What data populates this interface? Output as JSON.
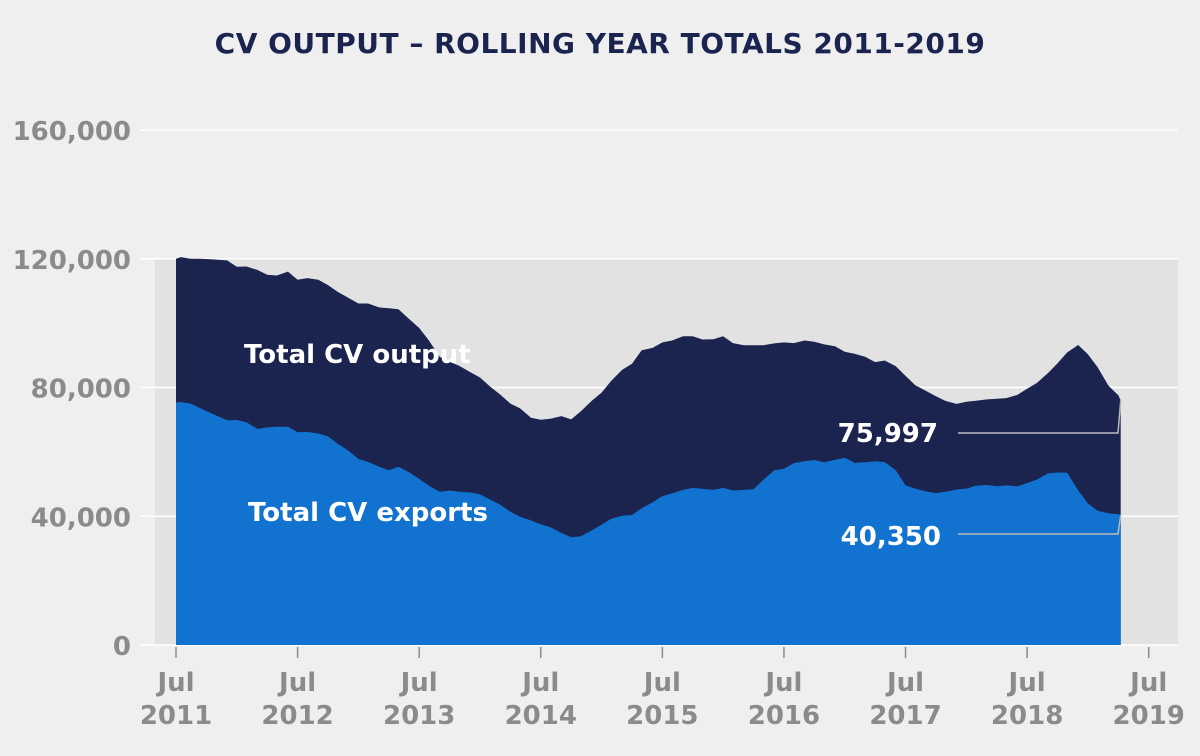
{
  "chart_data": {
    "type": "area",
    "title": "CV OUTPUT – ROLLING YEAR TOTALS 2011-2019",
    "xlabel": "",
    "ylabel": "",
    "ylim": [
      0,
      160000
    ],
    "yticks": [
      {
        "value": 0,
        "label": "0"
      },
      {
        "value": 40000,
        "label": "40,000"
      },
      {
        "value": 80000,
        "label": "80,000"
      },
      {
        "value": 120000,
        "label": "120,000"
      },
      {
        "value": 160000,
        "label": "160,000"
      }
    ],
    "xlim": [
      2011.5,
      2019.56
    ],
    "xticks": [
      {
        "value": 2011.5,
        "line1": "Jul",
        "line2": "2011"
      },
      {
        "value": 2012.5,
        "line1": "Jul",
        "line2": "2012"
      },
      {
        "value": 2013.5,
        "line1": "Jul",
        "line2": "2013"
      },
      {
        "value": 2014.5,
        "line1": "Jul",
        "line2": "2014"
      },
      {
        "value": 2015.5,
        "line1": "Jul",
        "line2": "2015"
      },
      {
        "value": 2016.5,
        "line1": "Jul",
        "line2": "2016"
      },
      {
        "value": 2017.5,
        "line1": "Jul",
        "line2": "2017"
      },
      {
        "value": 2018.5,
        "line1": "Jul",
        "line2": "2018"
      },
      {
        "value": 2019.5,
        "line1": "Jul",
        "line2": "2019"
      }
    ],
    "band_range": [
      0,
      120000
    ],
    "grid": true,
    "series": [
      {
        "name": "Total CV output",
        "color": "#1b234f",
        "label_color": "#ffffff",
        "end_value_label": "75,997",
        "points": [
          [
            2011.5,
            120000
          ],
          [
            2011.54,
            120500
          ],
          [
            2011.62,
            120000
          ],
          [
            2011.7,
            120000
          ],
          [
            2011.8,
            119800
          ],
          [
            2011.92,
            119500
          ],
          [
            2012.0,
            117500
          ],
          [
            2012.08,
            117600
          ],
          [
            2012.17,
            116500
          ],
          [
            2012.25,
            115000
          ],
          [
            2012.33,
            114800
          ],
          [
            2012.42,
            116000
          ],
          [
            2012.5,
            113500
          ],
          [
            2012.58,
            114000
          ],
          [
            2012.67,
            113500
          ],
          [
            2012.75,
            111800
          ],
          [
            2012.83,
            109700
          ],
          [
            2012.92,
            107800
          ],
          [
            2013.0,
            106100
          ],
          [
            2013.08,
            106100
          ],
          [
            2013.17,
            104900
          ],
          [
            2013.25,
            104600
          ],
          [
            2013.33,
            104300
          ],
          [
            2013.42,
            101200
          ],
          [
            2013.5,
            98500
          ],
          [
            2013.58,
            94600
          ],
          [
            2013.67,
            89500
          ],
          [
            2013.75,
            88000
          ],
          [
            2013.83,
            86700
          ],
          [
            2013.92,
            84800
          ],
          [
            2014.0,
            83100
          ],
          [
            2014.08,
            80400
          ],
          [
            2014.17,
            77700
          ],
          [
            2014.25,
            75000
          ],
          [
            2014.33,
            73500
          ],
          [
            2014.42,
            70600
          ],
          [
            2014.5,
            70000
          ],
          [
            2014.58,
            70300
          ],
          [
            2014.67,
            71100
          ],
          [
            2014.75,
            70100
          ],
          [
            2014.83,
            72600
          ],
          [
            2014.92,
            75900
          ],
          [
            2015.0,
            78400
          ],
          [
            2015.08,
            82100
          ],
          [
            2015.17,
            85500
          ],
          [
            2015.25,
            87400
          ],
          [
            2015.33,
            91600
          ],
          [
            2015.42,
            92300
          ],
          [
            2015.5,
            94000
          ],
          [
            2015.58,
            94600
          ],
          [
            2015.67,
            95900
          ],
          [
            2015.75,
            95900
          ],
          [
            2015.83,
            94900
          ],
          [
            2015.92,
            95000
          ],
          [
            2016.0,
            95900
          ],
          [
            2016.08,
            93800
          ],
          [
            2016.17,
            93100
          ],
          [
            2016.25,
            93100
          ],
          [
            2016.33,
            93100
          ],
          [
            2016.42,
            93700
          ],
          [
            2016.5,
            94000
          ],
          [
            2016.58,
            93800
          ],
          [
            2016.67,
            94600
          ],
          [
            2016.75,
            94200
          ],
          [
            2016.83,
            93400
          ],
          [
            2016.92,
            92800
          ],
          [
            2017.0,
            91100
          ],
          [
            2017.08,
            90500
          ],
          [
            2017.17,
            89500
          ],
          [
            2017.25,
            87900
          ],
          [
            2017.33,
            88400
          ],
          [
            2017.42,
            86600
          ],
          [
            2017.5,
            83600
          ],
          [
            2017.58,
            80700
          ],
          [
            2017.67,
            78900
          ],
          [
            2017.75,
            77300
          ],
          [
            2017.83,
            75800
          ],
          [
            2017.92,
            74900
          ],
          [
            2018.0,
            75600
          ],
          [
            2018.08,
            75900
          ],
          [
            2018.17,
            76300
          ],
          [
            2018.25,
            76500
          ],
          [
            2018.33,
            76700
          ],
          [
            2018.42,
            77700
          ],
          [
            2018.5,
            79600
          ],
          [
            2018.58,
            81400
          ],
          [
            2018.67,
            84400
          ],
          [
            2018.75,
            87500
          ],
          [
            2018.83,
            90900
          ],
          [
            2018.92,
            93200
          ],
          [
            2019.0,
            90300
          ],
          [
            2019.08,
            86300
          ],
          [
            2019.17,
            80500
          ],
          [
            2019.25,
            77600
          ],
          [
            2019.27,
            75997
          ]
        ]
      },
      {
        "name": "Total CV exports",
        "color": "#1173cf",
        "label_color": "#ffffff",
        "end_value_label": "40,350",
        "points": [
          [
            2011.5,
            75300
          ],
          [
            2011.54,
            75500
          ],
          [
            2011.62,
            75000
          ],
          [
            2011.7,
            73600
          ],
          [
            2011.8,
            71800
          ],
          [
            2011.92,
            69800
          ],
          [
            2012.0,
            69900
          ],
          [
            2012.08,
            69200
          ],
          [
            2012.17,
            67100
          ],
          [
            2012.25,
            67600
          ],
          [
            2012.33,
            67800
          ],
          [
            2012.42,
            67800
          ],
          [
            2012.5,
            66100
          ],
          [
            2012.58,
            66200
          ],
          [
            2012.67,
            65700
          ],
          [
            2012.75,
            64800
          ],
          [
            2012.83,
            62500
          ],
          [
            2012.92,
            60300
          ],
          [
            2013.0,
            57800
          ],
          [
            2013.08,
            56900
          ],
          [
            2013.17,
            55400
          ],
          [
            2013.25,
            54300
          ],
          [
            2013.33,
            55400
          ],
          [
            2013.42,
            53600
          ],
          [
            2013.5,
            51600
          ],
          [
            2013.58,
            49500
          ],
          [
            2013.67,
            47600
          ],
          [
            2013.75,
            48000
          ],
          [
            2013.83,
            47600
          ],
          [
            2013.92,
            47400
          ],
          [
            2014.0,
            46800
          ],
          [
            2014.08,
            45300
          ],
          [
            2014.17,
            43500
          ],
          [
            2014.25,
            41400
          ],
          [
            2014.33,
            39800
          ],
          [
            2014.42,
            38700
          ],
          [
            2014.5,
            37500
          ],
          [
            2014.58,
            36600
          ],
          [
            2014.67,
            34800
          ],
          [
            2014.75,
            33500
          ],
          [
            2014.83,
            33800
          ],
          [
            2014.92,
            35600
          ],
          [
            2015.0,
            37400
          ],
          [
            2015.08,
            39200
          ],
          [
            2015.17,
            40200
          ],
          [
            2015.25,
            40400
          ],
          [
            2015.33,
            42500
          ],
          [
            2015.42,
            44300
          ],
          [
            2015.5,
            46300
          ],
          [
            2015.58,
            47100
          ],
          [
            2015.67,
            48200
          ],
          [
            2015.75,
            48800
          ],
          [
            2015.83,
            48500
          ],
          [
            2015.92,
            48200
          ],
          [
            2016.0,
            48800
          ],
          [
            2016.08,
            48000
          ],
          [
            2016.17,
            48200
          ],
          [
            2016.25,
            48400
          ],
          [
            2016.33,
            51300
          ],
          [
            2016.42,
            54300
          ],
          [
            2016.5,
            54700
          ],
          [
            2016.58,
            56500
          ],
          [
            2016.67,
            57100
          ],
          [
            2016.75,
            57500
          ],
          [
            2016.83,
            56800
          ],
          [
            2016.92,
            57500
          ],
          [
            2017.0,
            58200
          ],
          [
            2017.08,
            56600
          ],
          [
            2017.17,
            56800
          ],
          [
            2017.25,
            57100
          ],
          [
            2017.33,
            56800
          ],
          [
            2017.42,
            54300
          ],
          [
            2017.5,
            49600
          ],
          [
            2017.58,
            48600
          ],
          [
            2017.67,
            47700
          ],
          [
            2017.75,
            47200
          ],
          [
            2017.83,
            47600
          ],
          [
            2017.92,
            48300
          ],
          [
            2018.0,
            48600
          ],
          [
            2018.08,
            49500
          ],
          [
            2018.17,
            49700
          ],
          [
            2018.25,
            49300
          ],
          [
            2018.33,
            49600
          ],
          [
            2018.42,
            49300
          ],
          [
            2018.5,
            50300
          ],
          [
            2018.58,
            51400
          ],
          [
            2018.67,
            53300
          ],
          [
            2018.75,
            53600
          ],
          [
            2018.83,
            53500
          ],
          [
            2018.92,
            48000
          ],
          [
            2019.0,
            44000
          ],
          [
            2019.08,
            41700
          ],
          [
            2019.17,
            40900
          ],
          [
            2019.25,
            40600
          ],
          [
            2019.27,
            40350
          ]
        ]
      }
    ]
  }
}
